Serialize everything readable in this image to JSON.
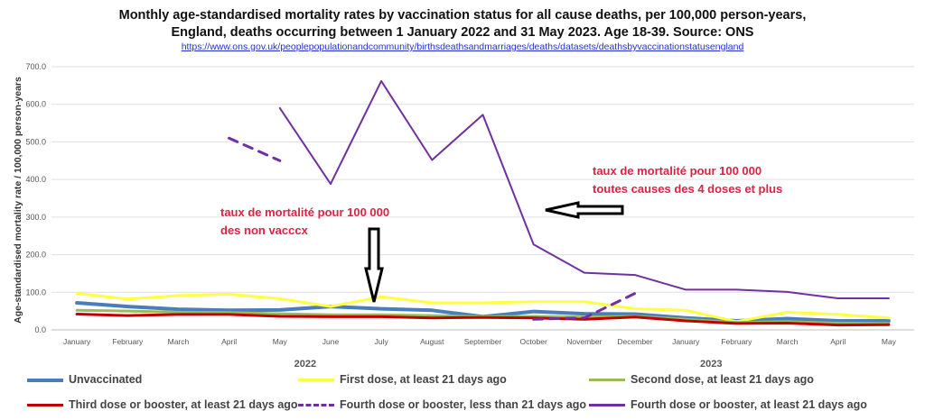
{
  "chart_data": {
    "type": "line",
    "title_line1": "Monthly age-standardised mortality rates by vaccination status for all cause deaths, per 100,000 person-years,",
    "title_line2": "England, deaths occurring between 1 January 2022 and 31 May  2023. Age 18-39. Source: ONS",
    "source_url": "https://www.ons.gov.uk/peoplepopulationandcommunity/birthsdeathsandmarriages/deaths/datasets/deathsbyvaccinationstatusengland",
    "ylabel": "Age-standardised mortality rate / 100,000 person-years",
    "ylim": [
      0,
      700
    ],
    "yticks": [
      "0.0",
      "100.0",
      "200.0",
      "300.0",
      "400.0",
      "500.0",
      "600.0",
      "700.0"
    ],
    "categories": [
      "January",
      "February",
      "March",
      "April",
      "May",
      "June",
      "July",
      "August",
      "September",
      "October",
      "November",
      "December",
      "January",
      "February",
      "March",
      "April",
      "May"
    ],
    "year_labels": [
      {
        "label": "2022",
        "at_index": 4.5
      },
      {
        "label": "2023",
        "at_index": 12.5
      }
    ],
    "series": [
      {
        "name": "Unvaccinated",
        "color": "#4a7ebb",
        "dash": false,
        "width": 4,
        "values": [
          72,
          62,
          55,
          52,
          53,
          62,
          56,
          52,
          35,
          49,
          43,
          42,
          32,
          24,
          30,
          24,
          24
        ]
      },
      {
        "name": "First dose, at least 21 days ago",
        "color": "#ffff44",
        "dash": false,
        "width": 3,
        "values": [
          97,
          82,
          91,
          95,
          83,
          62,
          88,
          72,
          72,
          75,
          75,
          56,
          52,
          22,
          47,
          41,
          32
        ]
      },
      {
        "name": "Second dose, at least 21 days ago",
        "color": "#9bbb59",
        "dash": false,
        "width": 3,
        "values": [
          52,
          50,
          47,
          46,
          43,
          40,
          40,
          38,
          35,
          36,
          34,
          36,
          28,
          20,
          22,
          18,
          17
        ]
      },
      {
        "name": "Third dose or booster, at least 21 days ago",
        "color": "#c00000",
        "dash": false,
        "width": 3,
        "values": [
          42,
          38,
          41,
          41,
          36,
          35,
          35,
          32,
          33,
          32,
          28,
          34,
          24,
          17,
          18,
          13,
          14
        ]
      },
      {
        "name": "Fourth dose or booster, less than 21 days ago",
        "color": "#7030a0",
        "dash": true,
        "width": 3,
        "values": [
          null,
          null,
          null,
          510,
          450,
          null,
          null,
          null,
          null,
          28,
          32,
          97,
          null,
          null,
          null,
          null,
          null
        ]
      },
      {
        "name": "Fourth dose or booster, at least 21 days ago",
        "color": "#7030a0",
        "dash": false,
        "width": 2,
        "values": [
          null,
          null,
          null,
          null,
          590,
          388,
          662,
          452,
          572,
          227,
          152,
          146,
          107,
          107,
          101,
          84,
          84
        ]
      }
    ],
    "annotations": [
      {
        "line1": "taux de mortalité pour 100 000",
        "line2": "des non vacccx"
      },
      {
        "line1": "taux de mortalité pour 100 000",
        "line2": "toutes causes des 4 doses et plus"
      }
    ]
  }
}
